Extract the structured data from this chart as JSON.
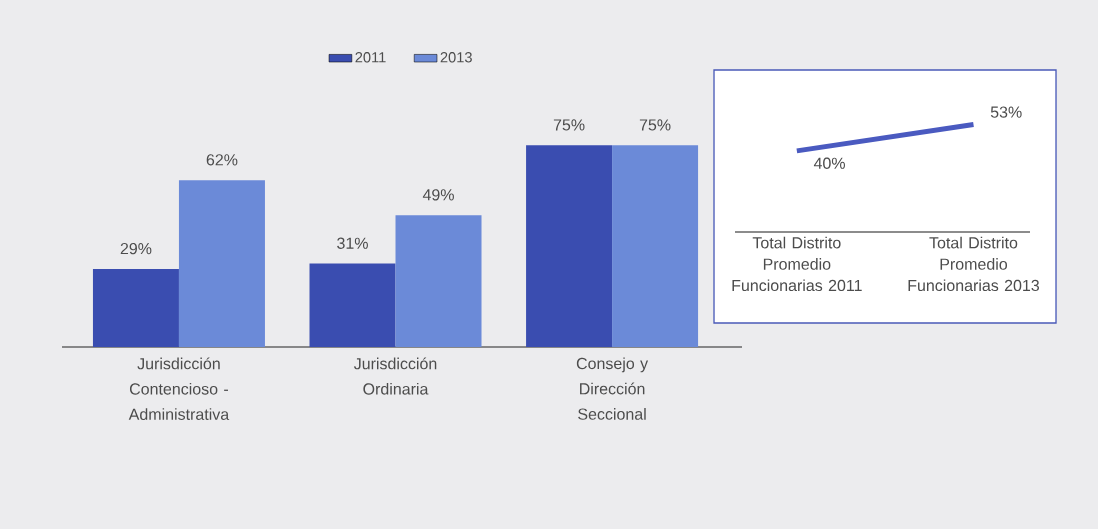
{
  "chart_data": [
    {
      "type": "bar",
      "categories": [
        "Jurisdicción Contencioso - Administrativa",
        "Jurisdicción Ordinaria",
        "Consejo y Dirección Seccional"
      ],
      "series": [
        {
          "name": "2011",
          "color": "#3a4db0",
          "values": [
            29,
            31,
            75
          ],
          "value_labels": [
            "29%",
            "31%",
            "75%"
          ]
        },
        {
          "name": "2013",
          "color": "#6b8ad8",
          "values": [
            62,
            49,
            75
          ],
          "value_labels": [
            "62%",
            "49%",
            "75%"
          ]
        }
      ],
      "legend": "top"
    },
    {
      "type": "line",
      "categories": [
        "Total Distrito Promedio Funcionarias 2011",
        "Total Distrito Promedio Funcionarias 2013"
      ],
      "series": [
        {
          "color": "#4a5ac0",
          "values": [
            40,
            53
          ],
          "value_labels": [
            "40%",
            "53%"
          ]
        }
      ]
    }
  ]
}
